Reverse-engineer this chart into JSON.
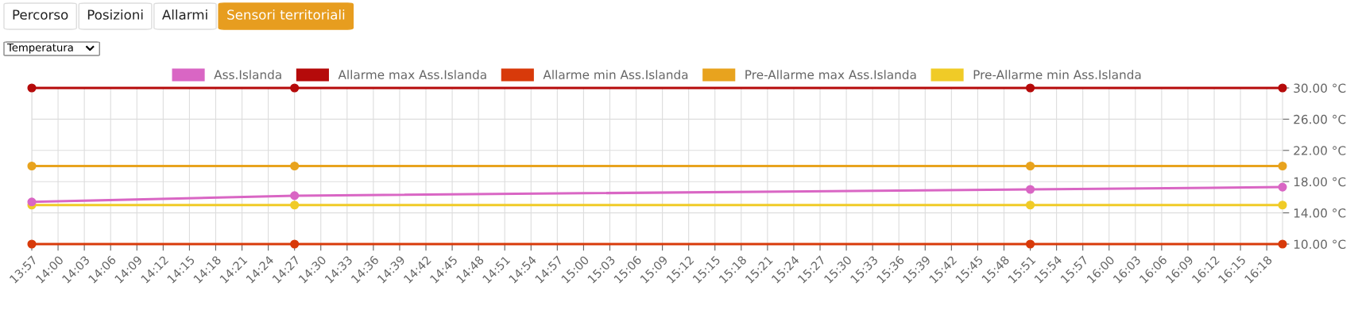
{
  "chart_data": {
    "type": "line",
    "annotations": [
      "Percorso",
      "Posizioni",
      "Allarmi",
      "Sensori territoriali",
      "Temperatura"
    ],
    "x": [
      13.95,
      14.45,
      15.85,
      16.33
    ],
    "series": [
      {
        "name": "Ass.Islanda",
        "color": "#d966c4",
        "values": [
          15.4,
          16.2,
          17.0,
          17.3
        ]
      },
      {
        "name": "Allarme max Ass.Islanda",
        "color": "#b50a0a",
        "values": [
          30,
          30,
          30,
          30
        ]
      },
      {
        "name": "Allarme min Ass.Islanda",
        "color": "#d83a0a",
        "values": [
          10,
          10,
          10,
          10
        ]
      },
      {
        "name": "Pre-Allarme max Ass.Islanda",
        "color": "#e8a31e",
        "values": [
          20,
          20,
          20,
          20
        ]
      },
      {
        "name": "Pre-Allarme min Ass.Islanda",
        "color": "#f0cb27",
        "values": [
          15,
          15,
          15,
          15
        ]
      }
    ],
    "xlim": [
      13.95,
      16.33
    ],
    "xticks": [
      {
        "value": 13.95,
        "label": "13:57"
      },
      {
        "value": 14.0,
        "label": "14:00"
      },
      {
        "value": 14.05,
        "label": "14:03"
      },
      {
        "value": 14.1,
        "label": "14:06"
      },
      {
        "value": 14.15,
        "label": "14:09"
      },
      {
        "value": 14.2,
        "label": "14:12"
      },
      {
        "value": 14.25,
        "label": "14:15"
      },
      {
        "value": 14.3,
        "label": "14:18"
      },
      {
        "value": 14.35,
        "label": "14:21"
      },
      {
        "value": 14.4,
        "label": "14:24"
      },
      {
        "value": 14.45,
        "label": "14:27"
      },
      {
        "value": 14.5,
        "label": "14:30"
      },
      {
        "value": 14.55,
        "label": "14:33"
      },
      {
        "value": 14.6,
        "label": "14:36"
      },
      {
        "value": 14.65,
        "label": "14:39"
      },
      {
        "value": 14.7,
        "label": "14:42"
      },
      {
        "value": 14.75,
        "label": "14:45"
      },
      {
        "value": 14.8,
        "label": "14:48"
      },
      {
        "value": 14.85,
        "label": "14:51"
      },
      {
        "value": 14.9,
        "label": "14:54"
      },
      {
        "value": 14.95,
        "label": "14:57"
      },
      {
        "value": 15.0,
        "label": "15:00"
      },
      {
        "value": 15.05,
        "label": "15:03"
      },
      {
        "value": 15.1,
        "label": "15:06"
      },
      {
        "value": 15.15,
        "label": "15:09"
      },
      {
        "value": 15.2,
        "label": "15:12"
      },
      {
        "value": 15.25,
        "label": "15:15"
      },
      {
        "value": 15.3,
        "label": "15:18"
      },
      {
        "value": 15.35,
        "label": "15:21"
      },
      {
        "value": 15.4,
        "label": "15:24"
      },
      {
        "value": 15.45,
        "label": "15:27"
      },
      {
        "value": 15.5,
        "label": "15:30"
      },
      {
        "value": 15.55,
        "label": "15:33"
      },
      {
        "value": 15.6,
        "label": "15:36"
      },
      {
        "value": 15.65,
        "label": "15:39"
      },
      {
        "value": 15.7,
        "label": "15:42"
      },
      {
        "value": 15.75,
        "label": "15:45"
      },
      {
        "value": 15.8,
        "label": "15:48"
      },
      {
        "value": 15.85,
        "label": "15:51"
      },
      {
        "value": 15.9,
        "label": "15:54"
      },
      {
        "value": 15.95,
        "label": "15:57"
      },
      {
        "value": 16.0,
        "label": "16:00"
      },
      {
        "value": 16.05,
        "label": "16:03"
      },
      {
        "value": 16.1,
        "label": "16:06"
      },
      {
        "value": 16.15,
        "label": "16:09"
      },
      {
        "value": 16.2,
        "label": "16:12"
      },
      {
        "value": 16.25,
        "label": "16:15"
      },
      {
        "value": 16.3,
        "label": "16:18"
      }
    ],
    "ylim": [
      10,
      30
    ],
    "yticks": [
      {
        "value": 10,
        "label": "10.00 °C"
      },
      {
        "value": 14,
        "label": "14.00 °C"
      },
      {
        "value": 18,
        "label": "18.00 °C"
      },
      {
        "value": 22,
        "label": "22.00 °C"
      },
      {
        "value": 26,
        "label": "26.00 °C"
      },
      {
        "value": 30,
        "label": "30.00 °C"
      }
    ],
    "grid": true,
    "legend": "top",
    "marker": "circle",
    "line_style": "solid"
  }
}
